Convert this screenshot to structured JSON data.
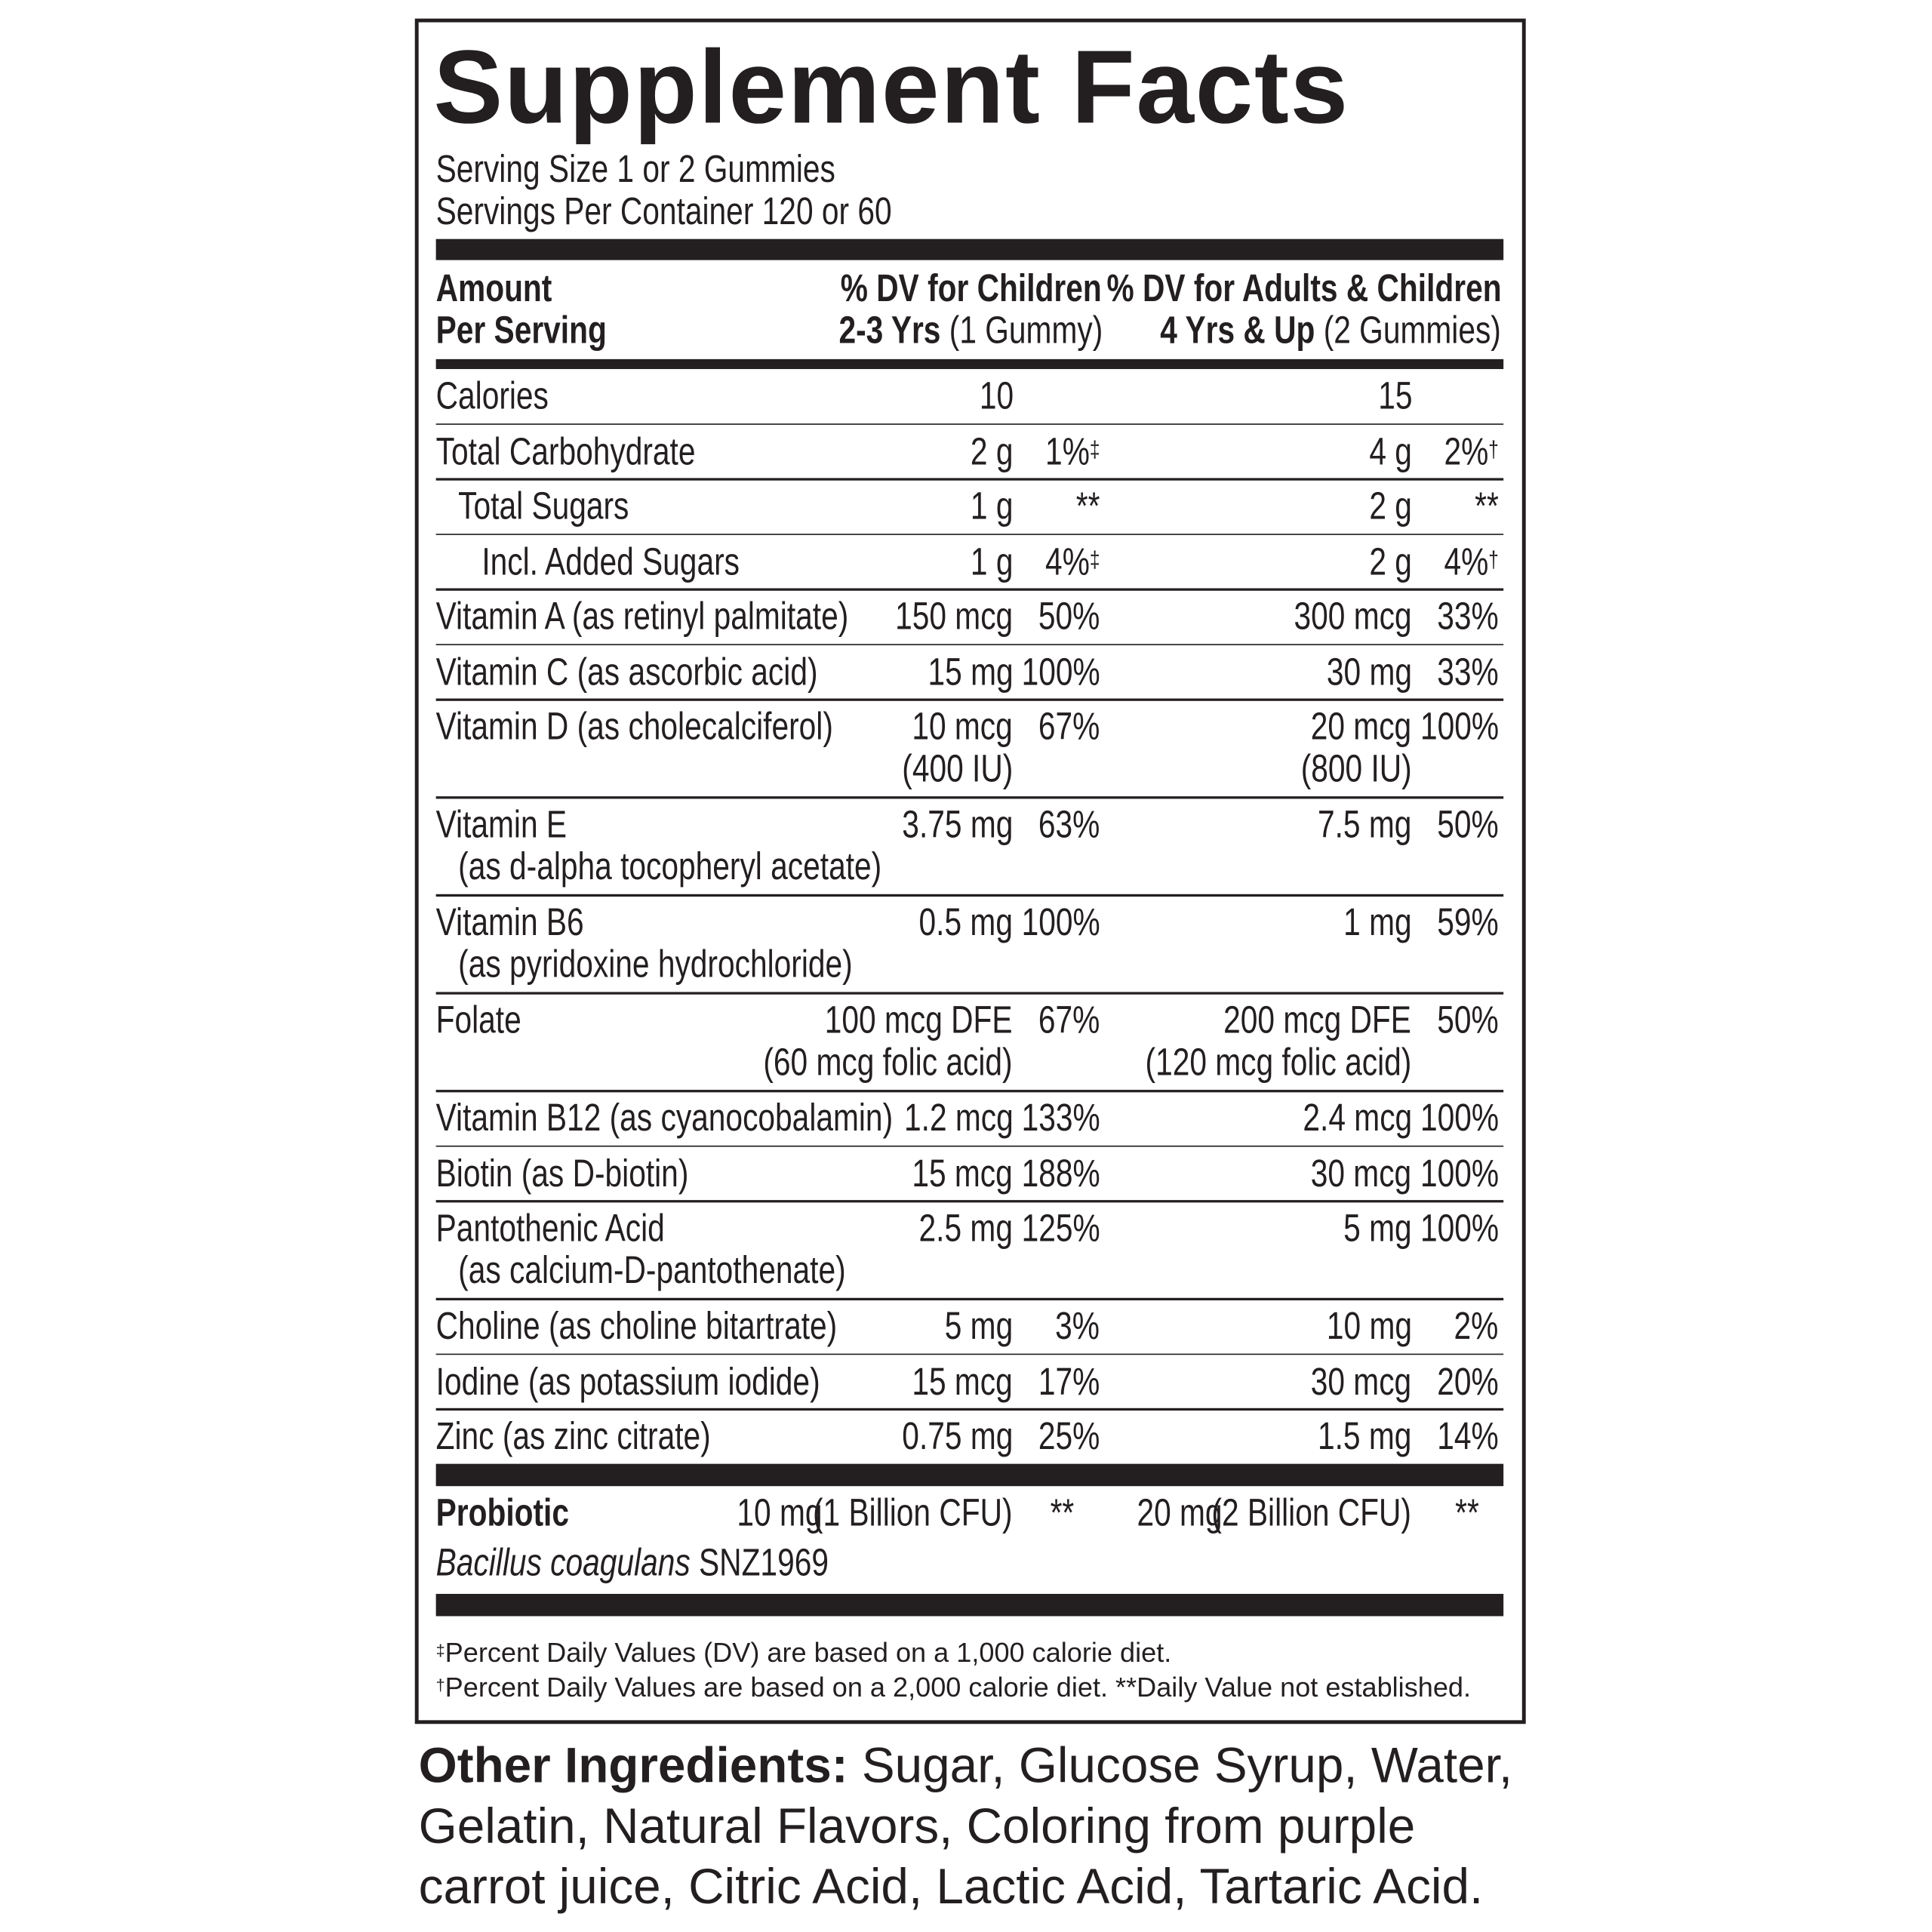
{
  "header": {
    "title": "Supplement Facts",
    "serving_size": "Serving Size 1 or 2 Gummies",
    "servings_per_container": "Servings Per Container 120 or 60"
  },
  "columns": {
    "amount": [
      "Amount",
      "Per Serving"
    ],
    "children": {
      "line1": "% DV for Children",
      "line2_bold": "2-3 Yrs",
      "line2": "(1 Gummy)"
    },
    "adults": {
      "line1": "% DV for Adults & Children",
      "line2_bold": "4 Yrs & Up",
      "line2": "(2 Gummies)"
    }
  },
  "rows": [
    {
      "name": [
        "Calories"
      ],
      "child_amount": [
        "10"
      ],
      "adult_amount": [
        "15"
      ]
    },
    {
      "name": [
        "Total Carbohydrate"
      ],
      "child_amount": [
        "2 g"
      ],
      "child_dv": "1%",
      "child_dv_mark": "‡",
      "adult_amount": [
        "4 g"
      ],
      "adult_dv": "2%",
      "adult_dv_mark": "†"
    },
    {
      "name": [
        "Total Sugars"
      ],
      "child_amount": [
        "1 g"
      ],
      "child_dv": "**",
      "adult_amount": [
        "2 g"
      ],
      "adult_dv": "**"
    },
    {
      "name": [
        "Incl. Added Sugars"
      ],
      "child_amount": [
        "1 g"
      ],
      "child_dv": "4%",
      "child_dv_mark": "‡",
      "adult_amount": [
        "2 g"
      ],
      "adult_dv": "4%",
      "adult_dv_mark": "†"
    },
    {
      "name": [
        "Vitamin A (as retinyl palmitate)"
      ],
      "child_amount": [
        "150 mcg"
      ],
      "child_dv": "50%",
      "adult_amount": [
        "300 mcg"
      ],
      "adult_dv": "33%"
    },
    {
      "name": [
        "Vitamin C (as ascorbic acid)"
      ],
      "child_amount": [
        "15 mg"
      ],
      "child_dv": "100%",
      "adult_amount": [
        "30 mg"
      ],
      "adult_dv": "33%"
    },
    {
      "name": [
        "Vitamin D (as cholecalciferol)"
      ],
      "child_amount": [
        "10 mcg",
        "(400 IU)"
      ],
      "child_dv": "67%",
      "adult_amount": [
        "20 mcg",
        "(800 IU)"
      ],
      "adult_dv": "100%"
    },
    {
      "name": [
        "Vitamin E",
        "(as d-alpha tocopheryl acetate)"
      ],
      "child_amount": [
        "3.75 mg"
      ],
      "child_dv": "63%",
      "adult_amount": [
        "7.5 mg"
      ],
      "adult_dv": "50%"
    },
    {
      "name": [
        "Vitamin B6",
        "(as pyridoxine hydrochloride)"
      ],
      "child_amount": [
        "0.5 mg"
      ],
      "child_dv": "100%",
      "adult_amount": [
        "1 mg"
      ],
      "adult_dv": "59%"
    },
    {
      "name": [
        "Folate"
      ],
      "child_amount": [
        "100 mcg DFE",
        "(60 mcg folic acid)"
      ],
      "child_dv": "67%",
      "adult_amount": [
        "200 mcg DFE",
        "(120 mcg folic acid)"
      ],
      "adult_dv": "50%"
    },
    {
      "name": [
        "Vitamin B12 (as cyanocobalamin)"
      ],
      "child_amount": [
        "1.2 mcg"
      ],
      "child_dv": "133%",
      "adult_amount": [
        "2.4 mcg"
      ],
      "adult_dv": "100%"
    },
    {
      "name": [
        "Biotin (as D-biotin)"
      ],
      "child_amount": [
        "15 mcg"
      ],
      "child_dv": "188%",
      "adult_amount": [
        "30 mcg"
      ],
      "adult_dv": "100%"
    },
    {
      "name": [
        "Pantothenic Acid",
        "(as calcium-D-pantothenate)"
      ],
      "child_amount": [
        "2.5 mg"
      ],
      "child_dv": "125%",
      "adult_amount": [
        "5 mg"
      ],
      "adult_dv": "100%"
    },
    {
      "name": [
        "Choline (as choline bitartrate)"
      ],
      "child_amount": [
        "5 mg"
      ],
      "child_dv": "3%",
      "adult_amount": [
        "10 mg"
      ],
      "adult_dv": "2%"
    },
    {
      "name": [
        "Iodine (as potassium iodide)"
      ],
      "child_amount": [
        "15 mcg"
      ],
      "child_dv": "17%",
      "adult_amount": [
        "30 mcg"
      ],
      "adult_dv": "20%"
    },
    {
      "name": [
        "Zinc (as zinc citrate)"
      ],
      "child_amount": [
        "0.75 mg"
      ],
      "child_dv": "25%",
      "adult_amount": [
        "1.5 mg"
      ],
      "adult_dv": "14%"
    }
  ],
  "probiotic": {
    "name": "Probiotic",
    "species": "Bacillus coagulans",
    "strain": "SNZ1969",
    "child_amount": "10 mg",
    "child_cfu": "(1 Billion CFU)",
    "child_dv": "**",
    "adult_amount": "20 mg",
    "adult_cfu": "(2 Billion CFU)",
    "adult_dv": "**"
  },
  "footnotes": [
    {
      "mark": "‡",
      "text": "Percent Daily Values (DV) are based on a 1,000 calorie diet."
    },
    {
      "mark": "†",
      "text": "Percent Daily Values are based on a 2,000 calorie diet. **Daily Value not established."
    }
  ],
  "other_ingredients": {
    "label": "Other Ingredients:",
    "text": "Sugar, Glucose Syrup, Water, Gelatin, Natural Flavors, Coloring from purple carrot juice, Citric Acid, Lactic Acid, Tartaric Acid."
  }
}
